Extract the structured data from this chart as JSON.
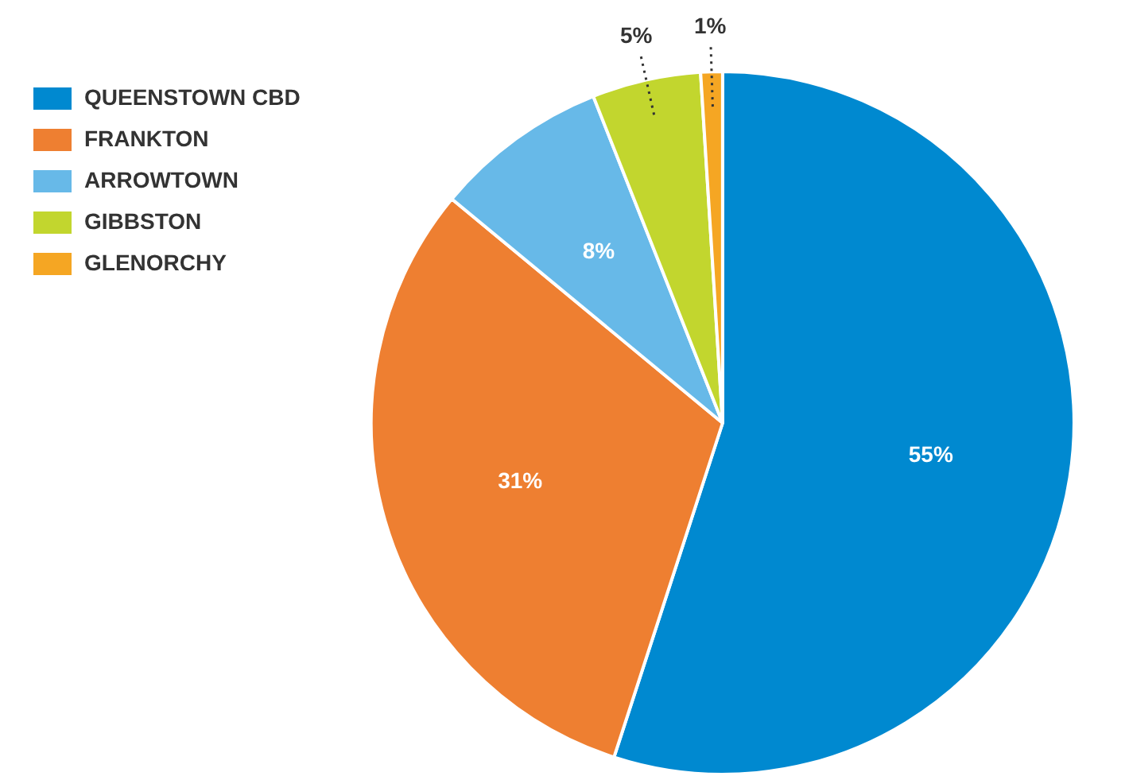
{
  "chart_data": {
    "type": "pie",
    "categories": [
      "QUEENSTOWN CBD",
      "FRANKTON",
      "ARROWTOWN",
      "GIBBSTON",
      "GLENORCHY"
    ],
    "values": [
      55,
      31,
      8,
      5,
      1
    ],
    "colors": [
      "#0089d0",
      "#ee7f31",
      "#67b9e8",
      "#c2d62e",
      "#f5a623"
    ],
    "value_labels": [
      "55%",
      "31%",
      "8%",
      "5%",
      "1%"
    ],
    "legend": "top left"
  }
}
